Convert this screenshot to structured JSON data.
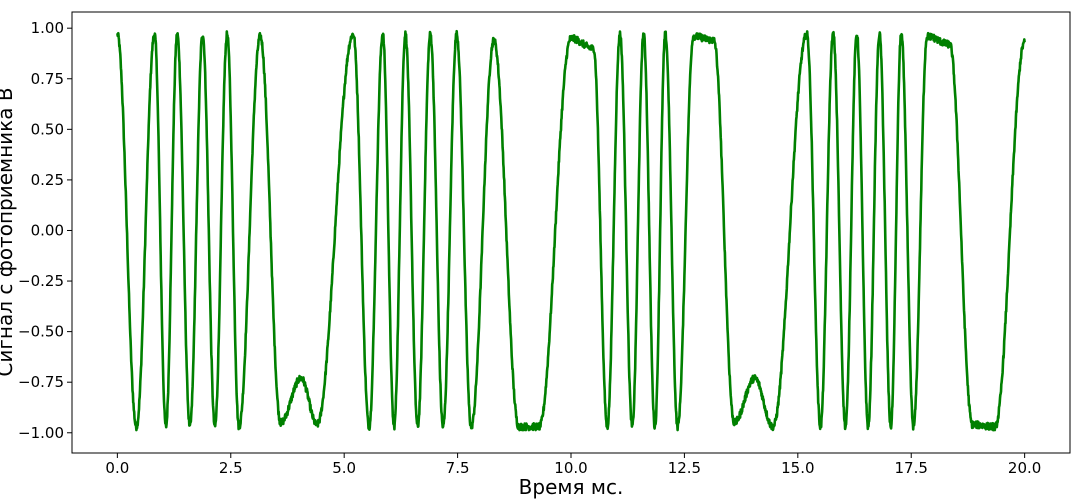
{
  "chart_data": {
    "type": "line",
    "title": "",
    "xlabel": "Время мс.",
    "ylabel": "Сигнал с фотоприемника В",
    "xlim": [
      -1.0,
      21.0
    ],
    "ylim": [
      -1.1,
      1.08
    ],
    "x_ticks": [
      0.0,
      2.5,
      5.0,
      7.5,
      10.0,
      12.5,
      15.0,
      17.5,
      20.0
    ],
    "x_tick_labels": [
      "0.0",
      "2.5",
      "5.0",
      "7.5",
      "10.0",
      "12.5",
      "15.0",
      "17.5",
      "20.0"
    ],
    "y_ticks": [
      1.0,
      0.75,
      0.5,
      0.25,
      0.0,
      -0.25,
      -0.5,
      -0.75,
      -1.0
    ],
    "y_tick_labels": [
      "1.00",
      "0.75",
      "0.50",
      "0.25",
      "0.00",
      "−0.25",
      "−0.50",
      "−0.75",
      "−1.00"
    ],
    "grid": false,
    "series": [
      {
        "color": "#008000",
        "x": [
          0.0,
          0.42,
          0.82,
          1.07,
          1.32,
          1.6,
          1.88,
          2.15,
          2.42,
          2.68,
          3.15,
          3.6,
          4.05,
          4.4,
          5.2,
          5.55,
          5.85,
          6.1,
          6.35,
          6.62,
          6.9,
          7.18,
          7.48,
          7.8,
          8.3,
          8.85,
          9.3,
          10.0,
          10.5,
          10.8,
          11.08,
          11.35,
          11.6,
          11.85,
          12.08,
          12.35,
          12.7,
          13.15,
          13.6,
          14.05,
          14.45,
          15.2,
          15.5,
          15.78,
          16.05,
          16.3,
          16.55,
          16.8,
          17.05,
          17.28,
          17.55,
          17.85,
          18.35,
          18.85,
          19.35,
          20.0
        ],
        "y": [
          0.97,
          -0.97,
          0.97,
          -0.97,
          0.97,
          -0.97,
          0.97,
          -0.97,
          0.97,
          -0.97,
          0.96,
          -0.95,
          -0.73,
          -0.96,
          0.97,
          -0.97,
          0.97,
          -0.97,
          0.97,
          -0.97,
          0.97,
          -0.97,
          0.97,
          -0.97,
          0.94,
          -0.97,
          -0.97,
          0.95,
          0.9,
          -0.97,
          0.97,
          -0.97,
          0.97,
          -0.97,
          0.97,
          -0.97,
          0.96,
          0.94,
          -0.95,
          -0.73,
          -0.97,
          0.97,
          -0.97,
          0.97,
          -0.97,
          0.97,
          -0.97,
          0.97,
          -0.97,
          0.97,
          -0.97,
          0.96,
          0.92,
          -0.96,
          -0.97,
          0.93
        ]
      }
    ]
  }
}
